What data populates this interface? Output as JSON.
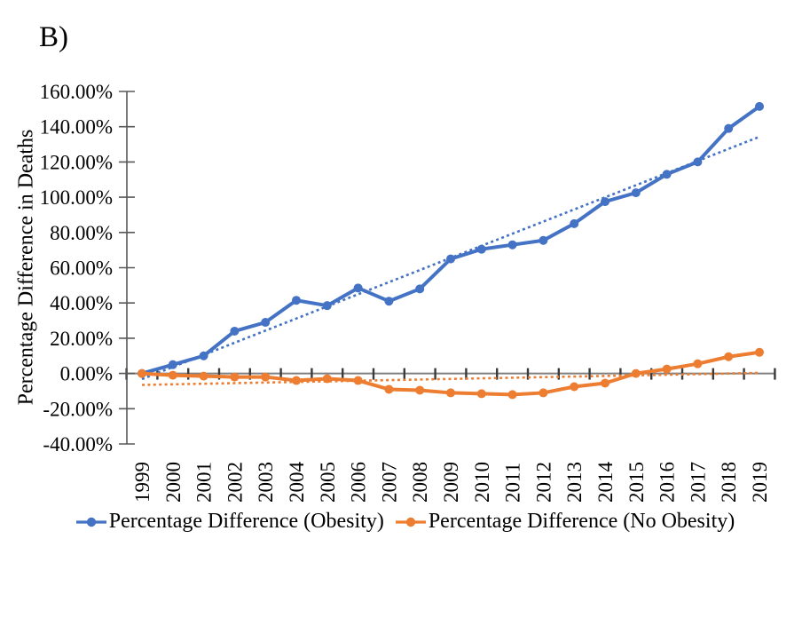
{
  "panel_label": "B)",
  "colors": {
    "obesity_series": "#4472C4",
    "no_obesity_series": "#ED7D31",
    "value_axis": "#595959",
    "zero_line": "#808080",
    "tick_marks": "#3a3a3a",
    "text": "#000000"
  },
  "chart_data": {
    "type": "line",
    "title": "",
    "xlabel": "",
    "ylabel": "Percentage Difference in Deaths",
    "x_labels": [
      "1999",
      "2000",
      "2001",
      "2002",
      "2003",
      "2004",
      "2005",
      "2006",
      "2007",
      "2008",
      "2009",
      "2010",
      "2011",
      "2012",
      "2013",
      "2014",
      "2015",
      "2016",
      "2017",
      "2018",
      "2019"
    ],
    "ylim": [
      -40,
      160
    ],
    "ytick_step": 20,
    "yticks": {
      "values": [
        160,
        140,
        120,
        100,
        80,
        60,
        40,
        20,
        0,
        -20,
        -40
      ],
      "labels": [
        "160.00%",
        "140.00%",
        "120.00%",
        "100.00%",
        "80.00%",
        "60.00%",
        "40.00%",
        "20.00%",
        "0.00%",
        "-20.00%",
        "-40.00%"
      ]
    },
    "grid": false,
    "legend_position": "bottom",
    "series": [
      {
        "name": "Percentage Difference (Obesity)",
        "color": "#4472C4",
        "marker": "circle",
        "values": [
          0,
          5,
          10,
          24,
          29,
          41.5,
          38.5,
          48.5,
          41,
          48,
          65,
          70.5,
          73,
          75.5,
          85,
          97.5,
          102.5,
          113,
          120,
          139,
          151.5
        ],
        "trendline": {
          "style": "dotted",
          "start": -3.2,
          "end": 134.3
        }
      },
      {
        "name": "Percentage Difference (No Obesity)",
        "color": "#ED7D31",
        "marker": "circle",
        "values": [
          0,
          -1,
          -1.5,
          -2,
          -2,
          -4,
          -3,
          -4,
          -9,
          -9.5,
          -11,
          -11.5,
          -12,
          -11,
          -7.5,
          -5.5,
          0,
          2.5,
          5.5,
          9.5,
          12
        ],
        "trendline": {
          "style": "dotted",
          "start": -6.5,
          "end": 0.3
        }
      }
    ]
  }
}
